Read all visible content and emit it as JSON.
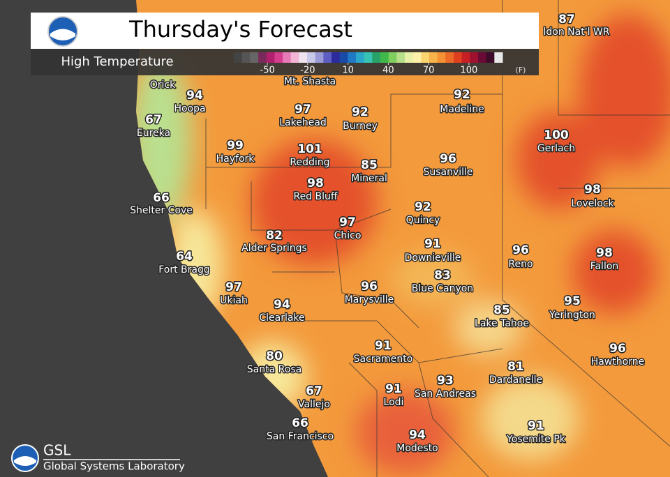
{
  "header": {
    "title": "Thursday's Forecast",
    "subtitle": "High Temperature"
  },
  "colorbar": {
    "lim": [
      -75,
      125
    ],
    "ticks": [
      -50,
      -20,
      10,
      40,
      70,
      100
    ],
    "unit": "(F)"
  },
  "cities": [
    {
      "name": "ldon Nat'l WR",
      "temp": 87
    },
    {
      "name": "Orick",
      "temp": null
    },
    {
      "name": "Mt. Shasta",
      "temp": null
    },
    {
      "name": "Hoopa",
      "temp": 94
    },
    {
      "name": "Eureka",
      "temp": 67
    },
    {
      "name": "Lakehead",
      "temp": 97
    },
    {
      "name": "Burney",
      "temp": 92
    },
    {
      "name": "Madeline",
      "temp": 92
    },
    {
      "name": "Hayfork",
      "temp": 99
    },
    {
      "name": "Redding",
      "temp": 101
    },
    {
      "name": "Mineral",
      "temp": 85
    },
    {
      "name": "Susanville",
      "temp": 96
    },
    {
      "name": "Gerlach",
      "temp": 100
    },
    {
      "name": "Red Bluff",
      "temp": 98
    },
    {
      "name": "Shelter Cove",
      "temp": 66
    },
    {
      "name": "Lovelock",
      "temp": 98
    },
    {
      "name": "Quincy",
      "temp": 92
    },
    {
      "name": "Chico",
      "temp": 97
    },
    {
      "name": "Alder Springs",
      "temp": 82
    },
    {
      "name": "Downieville",
      "temp": 91
    },
    {
      "name": "Reno",
      "temp": 96
    },
    {
      "name": "Fallon",
      "temp": 98
    },
    {
      "name": "Fort Bragg",
      "temp": 64
    },
    {
      "name": "Blue Canyon",
      "temp": 83
    },
    {
      "name": "Ukiah",
      "temp": 97
    },
    {
      "name": "Marysville",
      "temp": 96
    },
    {
      "name": "Clearlake",
      "temp": 94
    },
    {
      "name": "Lake Tahoe",
      "temp": 85
    },
    {
      "name": "Yerington",
      "temp": 95
    },
    {
      "name": "Sacramento",
      "temp": 91
    },
    {
      "name": "Hawthorne",
      "temp": 96
    },
    {
      "name": "Santa Rosa",
      "temp": 80
    },
    {
      "name": "Dardanelle",
      "temp": 81
    },
    {
      "name": "Lodi",
      "temp": 91
    },
    {
      "name": "San Andreas",
      "temp": 93
    },
    {
      "name": "Vallejo",
      "temp": 67
    },
    {
      "name": "San Francisco",
      "temp": 66
    },
    {
      "name": "Modesto",
      "temp": 94
    },
    {
      "name": "Yosemite Pk",
      "temp": 91
    }
  ],
  "footer": {
    "logo": "GSL",
    "name": "Global Systems Laboratory"
  }
}
